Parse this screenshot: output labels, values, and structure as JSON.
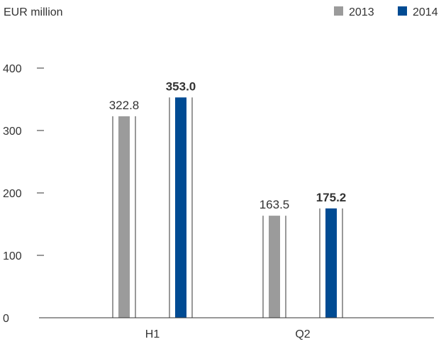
{
  "chart_data": {
    "type": "bar",
    "unit_label": "EUR million",
    "categories": [
      "H1",
      "Q2"
    ],
    "series": [
      {
        "name": "2013",
        "values": [
          322.8,
          163.5
        ],
        "value_labels": [
          "322.8",
          "163.5"
        ],
        "color": "#9b9b9b",
        "label_bold": false
      },
      {
        "name": "2014",
        "values": [
          353.0,
          175.2
        ],
        "value_labels": [
          "353.0",
          "175.2"
        ],
        "color": "#004b93",
        "label_bold": true
      }
    ],
    "y_ticks": [
      0,
      100,
      200,
      300,
      400
    ],
    "ylim": [
      0,
      400
    ],
    "legend_position": "top-right",
    "grid": false
  }
}
